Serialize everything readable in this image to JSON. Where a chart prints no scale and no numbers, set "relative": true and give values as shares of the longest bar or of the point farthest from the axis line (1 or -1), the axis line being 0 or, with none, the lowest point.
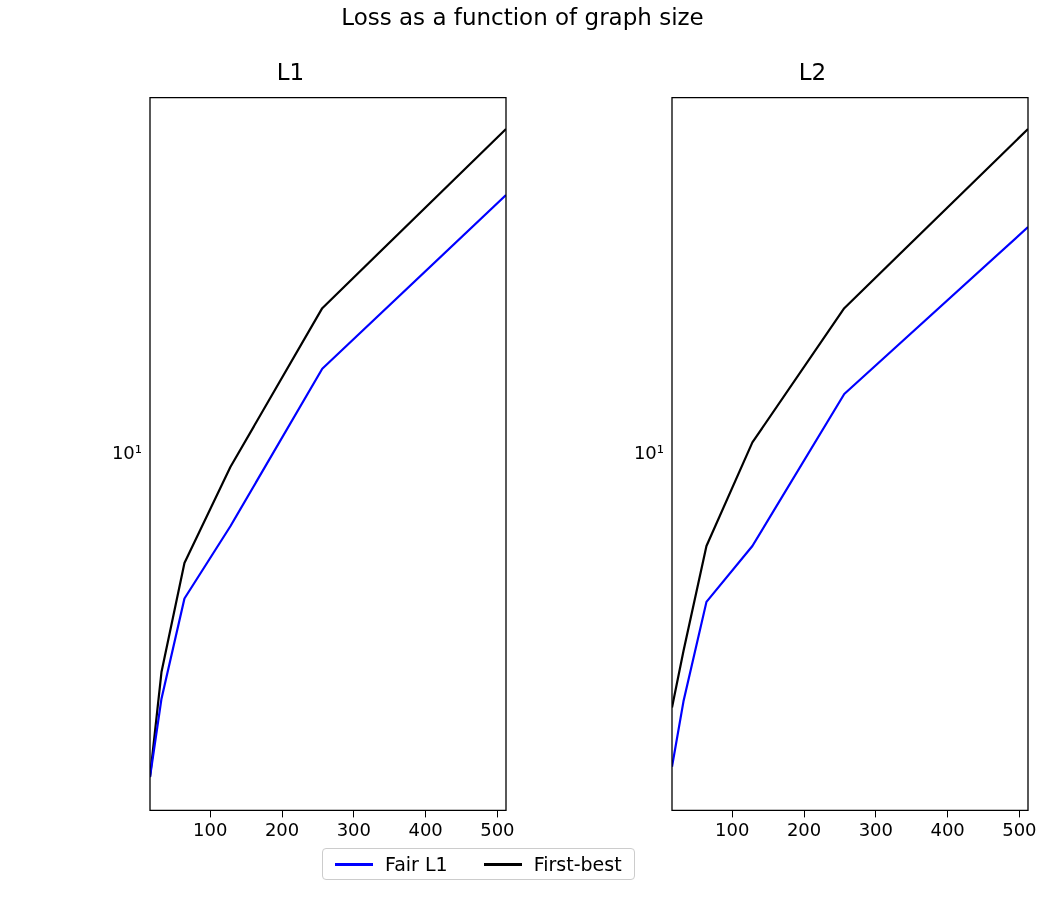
{
  "chart_data": [
    {
      "type": "other",
      "title": "Loss as a function of graph size"
    },
    {
      "type": "line",
      "title": "L1",
      "x": [
        16,
        32,
        64,
        128,
        256,
        512
      ],
      "legend": "bottom",
      "relative": true,
      "xlim": [
        16,
        512
      ],
      "xticks": [
        100,
        200,
        300,
        400,
        500
      ],
      "annotations": [
        "10¹"
      ],
      "series": [
        {
          "name": "Fair L1",
          "color": "#0000ff",
          "values": [
            0.049,
            0.164,
            0.311,
            0.417,
            0.648,
            0.903
          ]
        },
        {
          "name": "First-best",
          "color": "#000000",
          "values": [
            0.049,
            0.203,
            0.363,
            0.504,
            0.737,
            1
          ]
        }
      ]
    },
    {
      "type": "line",
      "title": "L2",
      "x": [
        16,
        32,
        64,
        128,
        256,
        512
      ],
      "relative": true,
      "xlim": [
        16,
        512
      ],
      "xticks": [
        100,
        200,
        300,
        400,
        500
      ],
      "annotations": [
        "10¹"
      ],
      "series": [
        {
          "color": "#0000ff",
          "values": [
            0.064,
            0.16,
            0.306,
            0.388,
            0.611,
            0.856
          ]
        },
        {
          "color": "#000000",
          "values": [
            0.151,
            0.234,
            0.388,
            0.54,
            0.737,
            1
          ]
        }
      ]
    }
  ]
}
